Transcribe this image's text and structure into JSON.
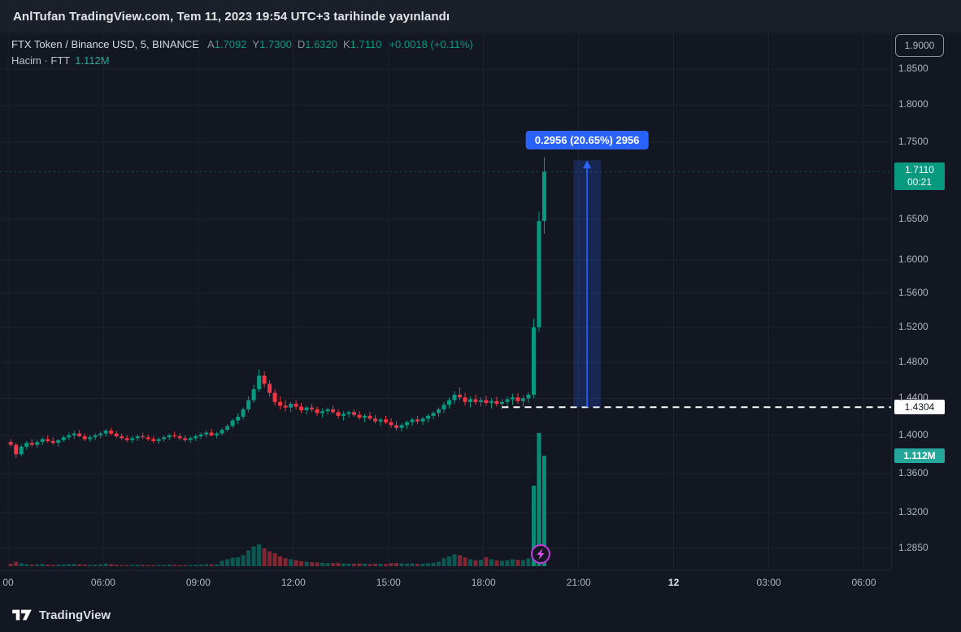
{
  "meta": {
    "title": "AnlTufan TradingView.com, Tem 11, 2023 19:54 UTC+3 tarihinde yayınlandı"
  },
  "legend": {
    "symbol": "FTX Token / Binance USD, 5, BINANCE",
    "ohlc": [
      {
        "k": "A",
        "v": "1.7092"
      },
      {
        "k": "Y",
        "v": "1.7300"
      },
      {
        "k": "D",
        "v": "1.6320"
      },
      {
        "k": "K",
        "v": "1.7110"
      }
    ],
    "change": "+0.0018 (+0.11%)",
    "volume_label": "Hacim · FTT",
    "volume_value": "1.112M"
  },
  "axis": {
    "boxed_tick": "1.9000",
    "price_ticks": [
      "1.8500",
      "1.8000",
      "1.7500",
      "1.6500",
      "1.6000",
      "1.5600",
      "1.5200",
      "1.4800",
      "1.4400",
      "1.4000",
      "1.3600",
      "1.3200",
      "1.2850"
    ],
    "time_ticks": [
      {
        "m": 0,
        "label": "00",
        "day": false
      },
      {
        "m": 180,
        "label": "06:00",
        "day": false
      },
      {
        "m": 360,
        "label": "09:00",
        "day": false
      },
      {
        "m": 540,
        "label": "12:00",
        "day": false
      },
      {
        "m": 720,
        "label": "15:00",
        "day": false
      },
      {
        "m": 900,
        "label": "18:00",
        "day": false
      },
      {
        "m": 1080,
        "label": "21:00",
        "day": false
      },
      {
        "m": 1260,
        "label": "12",
        "day": true
      },
      {
        "m": 1440,
        "label": "03:00",
        "day": false
      },
      {
        "m": 1620,
        "label": "06:00",
        "day": false
      }
    ],
    "badges": {
      "price": "1.7110",
      "countdown": "00:21",
      "level": "1.4304",
      "volume": "1.112M"
    }
  },
  "chart_data": {
    "type": "candlestick",
    "title": "FTX Token / Binance USD, 5, BINANCE",
    "symbol": "FTT/BUSD",
    "interval_min": 5,
    "exchange": "BINANCE",
    "price_scale_type": "log",
    "ylim": [
      1.285,
      1.9
    ],
    "time_axis_start_label": "03:00",
    "current_bar": {
      "open": 1.7092,
      "high": 1.73,
      "low": 1.632,
      "close": 1.711,
      "change": 0.0018,
      "change_pct": 0.11,
      "volume": "1.112M"
    },
    "t0_min": 0,
    "step_min": 10,
    "ohlcv_note": "rows are [open,high,low,close,volume_millions]; time = 03:00 + t0_min + i*step_min",
    "ohlcv": [
      [
        1.393,
        1.396,
        1.388,
        1.39,
        0.025
      ],
      [
        1.39,
        1.392,
        1.376,
        1.38,
        0.045
      ],
      [
        1.38,
        1.39,
        1.378,
        1.388,
        0.03
      ],
      [
        1.388,
        1.394,
        1.385,
        1.392,
        0.02
      ],
      [
        1.392,
        1.396,
        1.388,
        1.39,
        0.015
      ],
      [
        1.39,
        1.395,
        1.387,
        1.393,
        0.018
      ],
      [
        1.393,
        1.398,
        1.39,
        1.396,
        0.022
      ],
      [
        1.396,
        1.4,
        1.392,
        1.394,
        0.016
      ],
      [
        1.394,
        1.398,
        1.39,
        1.392,
        0.014
      ],
      [
        1.392,
        1.396,
        1.388,
        1.395,
        0.017
      ],
      [
        1.395,
        1.4,
        1.393,
        1.398,
        0.019
      ],
      [
        1.398,
        1.403,
        1.395,
        1.4,
        0.021
      ],
      [
        1.4,
        1.405,
        1.396,
        1.402,
        0.024
      ],
      [
        1.402,
        1.406,
        1.398,
        1.399,
        0.018
      ],
      [
        1.399,
        1.402,
        1.394,
        1.396,
        0.015
      ],
      [
        1.396,
        1.4,
        1.393,
        1.398,
        0.013
      ],
      [
        1.398,
        1.402,
        1.395,
        1.4,
        0.016
      ],
      [
        1.4,
        1.404,
        1.397,
        1.402,
        0.018
      ],
      [
        1.402,
        1.407,
        1.399,
        1.405,
        0.026
      ],
      [
        1.405,
        1.408,
        1.4,
        1.402,
        0.02
      ],
      [
        1.402,
        1.405,
        1.397,
        1.399,
        0.015
      ],
      [
        1.399,
        1.402,
        1.395,
        1.397,
        0.012
      ],
      [
        1.397,
        1.4,
        1.393,
        1.395,
        0.011
      ],
      [
        1.395,
        1.399,
        1.392,
        1.397,
        0.013
      ],
      [
        1.397,
        1.401,
        1.394,
        1.399,
        0.015
      ],
      [
        1.399,
        1.403,
        1.396,
        1.398,
        0.012
      ],
      [
        1.398,
        1.401,
        1.394,
        1.396,
        0.011
      ],
      [
        1.396,
        1.399,
        1.392,
        1.394,
        0.01
      ],
      [
        1.394,
        1.398,
        1.391,
        1.396,
        0.012
      ],
      [
        1.396,
        1.4,
        1.393,
        1.398,
        0.013
      ],
      [
        1.398,
        1.402,
        1.395,
        1.4,
        0.016
      ],
      [
        1.4,
        1.404,
        1.397,
        1.399,
        0.013
      ],
      [
        1.399,
        1.402,
        1.395,
        1.397,
        0.011
      ],
      [
        1.397,
        1.4,
        1.393,
        1.395,
        0.01
      ],
      [
        1.395,
        1.399,
        1.392,
        1.397,
        0.012
      ],
      [
        1.397,
        1.401,
        1.394,
        1.399,
        0.014
      ],
      [
        1.399,
        1.403,
        1.396,
        1.401,
        0.018
      ],
      [
        1.401,
        1.405,
        1.398,
        1.403,
        0.02
      ],
      [
        1.403,
        1.407,
        1.399,
        1.4,
        0.017
      ],
      [
        1.4,
        1.404,
        1.397,
        1.402,
        0.019
      ],
      [
        1.402,
        1.408,
        1.4,
        1.406,
        0.055
      ],
      [
        1.406,
        1.412,
        1.404,
        1.41,
        0.07
      ],
      [
        1.41,
        1.418,
        1.408,
        1.416,
        0.085
      ],
      [
        1.416,
        1.424,
        1.412,
        1.42,
        0.09
      ],
      [
        1.42,
        1.43,
        1.417,
        1.428,
        0.11
      ],
      [
        1.428,
        1.442,
        1.425,
        1.438,
        0.16
      ],
      [
        1.438,
        1.455,
        1.435,
        1.45,
        0.2
      ],
      [
        1.45,
        1.472,
        1.447,
        1.465,
        0.22
      ],
      [
        1.465,
        1.47,
        1.452,
        1.456,
        0.18
      ],
      [
        1.456,
        1.46,
        1.442,
        1.446,
        0.15
      ],
      [
        1.446,
        1.45,
        1.432,
        1.436,
        0.13
      ],
      [
        1.436,
        1.442,
        1.428,
        1.432,
        0.1
      ],
      [
        1.432,
        1.438,
        1.426,
        1.43,
        0.08
      ],
      [
        1.43,
        1.436,
        1.425,
        1.434,
        0.07
      ],
      [
        1.434,
        1.438,
        1.428,
        1.431,
        0.06
      ],
      [
        1.431,
        1.435,
        1.424,
        1.427,
        0.05
      ],
      [
        1.427,
        1.432,
        1.422,
        1.43,
        0.045
      ],
      [
        1.43,
        1.434,
        1.425,
        1.428,
        0.04
      ],
      [
        1.428,
        1.431,
        1.421,
        1.424,
        0.038
      ],
      [
        1.424,
        1.429,
        1.419,
        1.426,
        0.035
      ],
      [
        1.426,
        1.43,
        1.422,
        1.428,
        0.032
      ],
      [
        1.428,
        1.432,
        1.423,
        1.425,
        0.03
      ],
      [
        1.425,
        1.428,
        1.418,
        1.421,
        0.034
      ],
      [
        1.421,
        1.426,
        1.416,
        1.423,
        0.028
      ],
      [
        1.423,
        1.427,
        1.419,
        1.425,
        0.026
      ],
      [
        1.425,
        1.428,
        1.42,
        1.422,
        0.024
      ],
      [
        1.422,
        1.426,
        1.417,
        1.419,
        0.028
      ],
      [
        1.419,
        1.423,
        1.414,
        1.421,
        0.025
      ],
      [
        1.421,
        1.425,
        1.416,
        1.418,
        0.022
      ],
      [
        1.418,
        1.422,
        1.413,
        1.415,
        0.026
      ],
      [
        1.415,
        1.419,
        1.41,
        1.417,
        0.024
      ],
      [
        1.417,
        1.421,
        1.412,
        1.414,
        0.022
      ],
      [
        1.414,
        1.418,
        1.408,
        1.411,
        0.03
      ],
      [
        1.411,
        1.415,
        1.405,
        1.408,
        0.032
      ],
      [
        1.408,
        1.413,
        1.404,
        1.411,
        0.028
      ],
      [
        1.411,
        1.416,
        1.407,
        1.414,
        0.026
      ],
      [
        1.414,
        1.419,
        1.41,
        1.417,
        0.028
      ],
      [
        1.417,
        1.421,
        1.412,
        1.415,
        0.024
      ],
      [
        1.415,
        1.42,
        1.411,
        1.418,
        0.026
      ],
      [
        1.418,
        1.423,
        1.414,
        1.421,
        0.03
      ],
      [
        1.421,
        1.426,
        1.417,
        1.424,
        0.034
      ],
      [
        1.424,
        1.43,
        1.42,
        1.428,
        0.045
      ],
      [
        1.428,
        1.436,
        1.424,
        1.433,
        0.08
      ],
      [
        1.433,
        1.441,
        1.429,
        1.438,
        0.1
      ],
      [
        1.438,
        1.448,
        1.434,
        1.444,
        0.12
      ],
      [
        1.444,
        1.452,
        1.438,
        1.441,
        0.11
      ],
      [
        1.441,
        1.446,
        1.432,
        1.436,
        0.09
      ],
      [
        1.436,
        1.442,
        1.43,
        1.439,
        0.07
      ],
      [
        1.439,
        1.444,
        1.433,
        1.436,
        0.06
      ],
      [
        1.436,
        1.441,
        1.431,
        1.438,
        0.065
      ],
      [
        1.438,
        1.443,
        1.432,
        1.435,
        0.09
      ],
      [
        1.435,
        1.44,
        1.429,
        1.437,
        0.07
      ],
      [
        1.437,
        1.442,
        1.431,
        1.434,
        0.06
      ],
      [
        1.434,
        1.439,
        1.428,
        1.436,
        0.055
      ],
      [
        1.436,
        1.442,
        1.43,
        1.439,
        0.06
      ],
      [
        1.439,
        1.445,
        1.433,
        1.441,
        0.07
      ],
      [
        1.441,
        1.446,
        1.434,
        1.437,
        0.065
      ],
      [
        1.437,
        1.443,
        1.431,
        1.44,
        0.06
      ],
      [
        1.44,
        1.447,
        1.435,
        1.444,
        0.08
      ],
      [
        1.444,
        1.53,
        1.44,
        1.52,
        0.81
      ],
      [
        1.52,
        1.66,
        1.515,
        1.648,
        1.34
      ],
      [
        1.648,
        1.73,
        1.632,
        1.711,
        1.112
      ]
    ],
    "annotations": {
      "measurement": {
        "label": "0.2956 (20.65%) 2956",
        "price_from": 1.4304,
        "price_to": 1.726,
        "t_from_min": 1070,
        "t_to_min": 1122
      },
      "dashed_level": {
        "price": 1.4304,
        "t_from_min": 935
      },
      "lightning_marker": {
        "t_min": 1008,
        "icon": "lightning-bolt"
      }
    }
  },
  "footer": {
    "brand": "TradingView"
  },
  "colors": {
    "up": "#089981",
    "down": "#f23645",
    "accent_blue": "#2962ff",
    "volume_badge": "#26a69a",
    "level_badge_bg": "#ffffff",
    "marker_purple": "#df4ff0",
    "background": "#131722"
  }
}
